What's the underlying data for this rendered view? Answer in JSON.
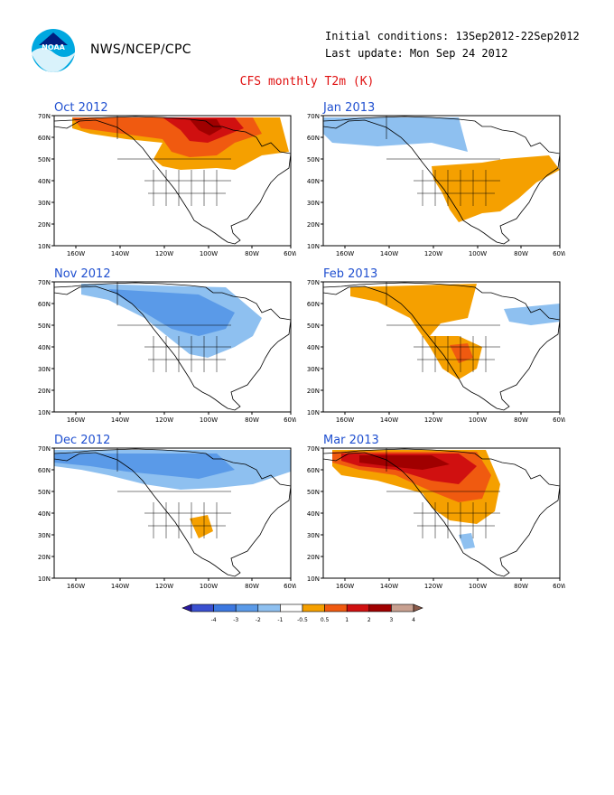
{
  "header": {
    "logo_text": "NOAA",
    "org": "NWS/NCEP/CPC",
    "init_conditions": "Initial conditions: 13Sep2012-22Sep2012",
    "last_update": "Last update: Mon Sep 24 2012",
    "title": "CFS monthly T2m (K)"
  },
  "axes": {
    "lat_ticks": [
      "70N",
      "60N",
      "50N",
      "40N",
      "30N",
      "20N",
      "10N"
    ],
    "lon_ticks": [
      "160W",
      "140W",
      "120W",
      "100W",
      "80W",
      "60W"
    ]
  },
  "panels": [
    {
      "label": "Oct 2012",
      "anomaly": "warm north"
    },
    {
      "label": "Jan 2013",
      "anomaly": "cold north, warm central US"
    },
    {
      "label": "Nov 2012",
      "anomaly": "cold north/central"
    },
    {
      "label": "Feb 2013",
      "anomaly": "warm west, warm central US"
    },
    {
      "label": "Dec 2012",
      "anomaly": "cold north"
    },
    {
      "label": "Mar 2013",
      "anomaly": "strong warm north/west"
    }
  ],
  "colorbar": {
    "labels": [
      "-4",
      "-3",
      "-2",
      "-1",
      "-0.5",
      "0.5",
      "1",
      "2",
      "3",
      "4"
    ],
    "colors": [
      "#2a1aa0",
      "#3a50d0",
      "#3c78e0",
      "#5a9ae8",
      "#8ec0f0",
      "#ffffff",
      "#f5a000",
      "#f05a10",
      "#d01010",
      "#a00000",
      "#c8a090",
      "#8a5a4a"
    ]
  }
}
